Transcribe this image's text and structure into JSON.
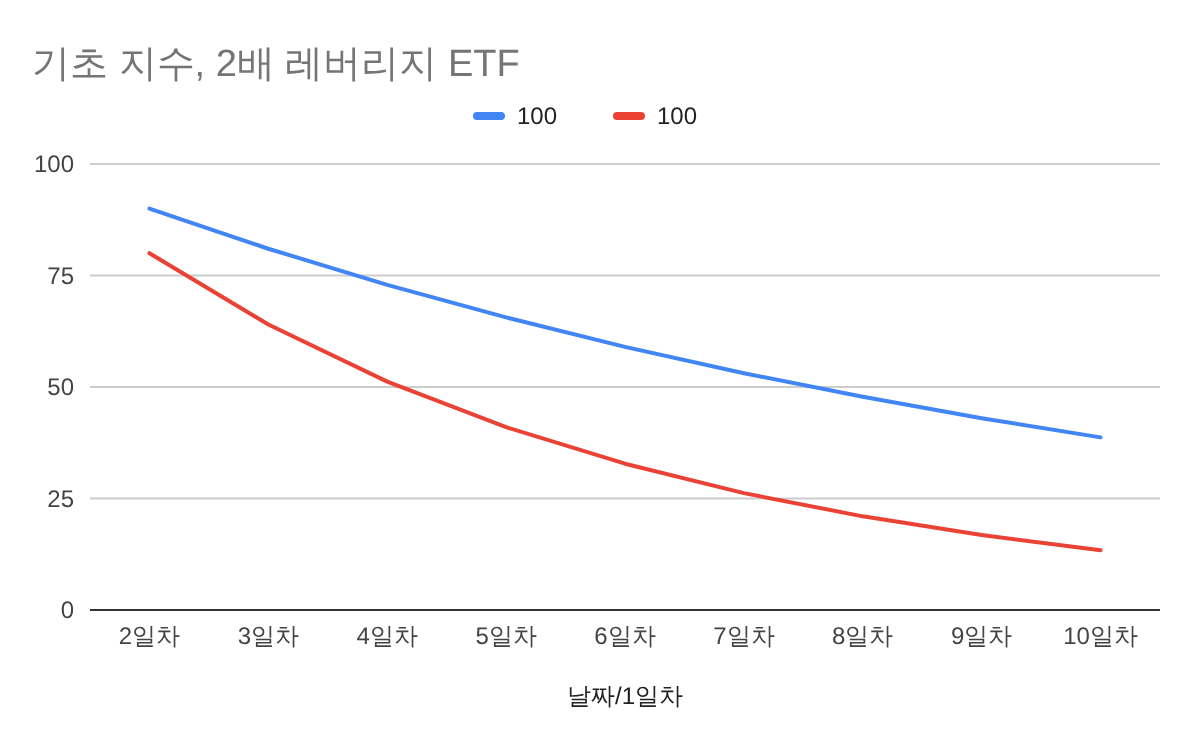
{
  "chart_data": {
    "type": "line",
    "title": "기초 지수, 2배 레버리지 ETF",
    "xlabel": "날짜/1일차",
    "categories": [
      "2일차",
      "3일차",
      "4일차",
      "5일차",
      "6일차",
      "7일차",
      "8일차",
      "9일차",
      "10일차"
    ],
    "series": [
      {
        "name": "100",
        "color": "#4285f4",
        "values": [
          90,
          81,
          72.9,
          65.6,
          59,
          53.1,
          47.8,
          43,
          38.7
        ]
      },
      {
        "name": "100",
        "color": "#ea4335",
        "values": [
          80,
          64,
          51.2,
          41,
          32.8,
          26.2,
          21,
          16.8,
          13.4
        ]
      }
    ],
    "ylim": [
      0,
      100
    ],
    "yticks": [
      0,
      25,
      50,
      75,
      100
    ],
    "grid": "y",
    "legend": "top",
    "line_style": "solid",
    "marker": "none"
  }
}
